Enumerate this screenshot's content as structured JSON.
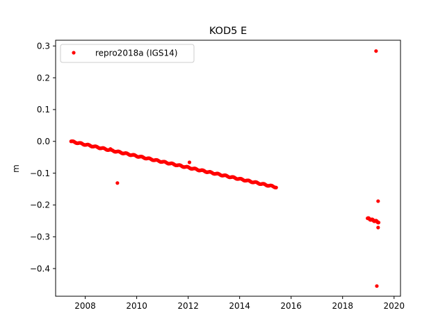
{
  "chart_data": {
    "type": "scatter",
    "title": "KOD5 E",
    "xlabel": "",
    "ylabel": "m",
    "xlim": [
      2006.85,
      2020.25
    ],
    "ylim": [
      -0.487,
      0.318
    ],
    "xticks": [
      2008,
      2010,
      2012,
      2014,
      2016,
      2018,
      2020
    ],
    "yticks": [
      0.3,
      0.2,
      0.1,
      0.0,
      -0.1,
      -0.2,
      -0.3,
      -0.4
    ],
    "ytick_labels": [
      "0.3",
      "0.2",
      "0.1",
      "0.0",
      "−0.1",
      "−0.2",
      "−0.3",
      "−0.4"
    ],
    "grid": false,
    "legend": {
      "location": "upper left",
      "entries": [
        "repro2018a (IGS14)"
      ]
    },
    "series": [
      {
        "name": "repro2018a (IGS14)",
        "color": "#ff0000",
        "marker": "circle",
        "trend_segments": [
          {
            "x_start": 2007.45,
            "y_start": 0.0,
            "x_end": 2015.42,
            "y_end": -0.144,
            "x_step": 0.02
          },
          {
            "x_start": 2018.97,
            "y_start": -0.242,
            "x_end": 2019.4,
            "y_end": -0.254,
            "x_step": 0.01
          }
        ],
        "outliers": [
          {
            "x": 2009.25,
            "y": -0.131
          },
          {
            "x": 2019.3,
            "y": 0.284
          },
          {
            "x": 2019.38,
            "y": -0.188
          },
          {
            "x": 2019.38,
            "y": -0.271
          },
          {
            "x": 2019.33,
            "y": -0.455
          },
          {
            "x": 2012.05,
            "y": -0.066
          },
          {
            "x": 2008.98,
            "y": -0.024
          }
        ]
      }
    ]
  }
}
